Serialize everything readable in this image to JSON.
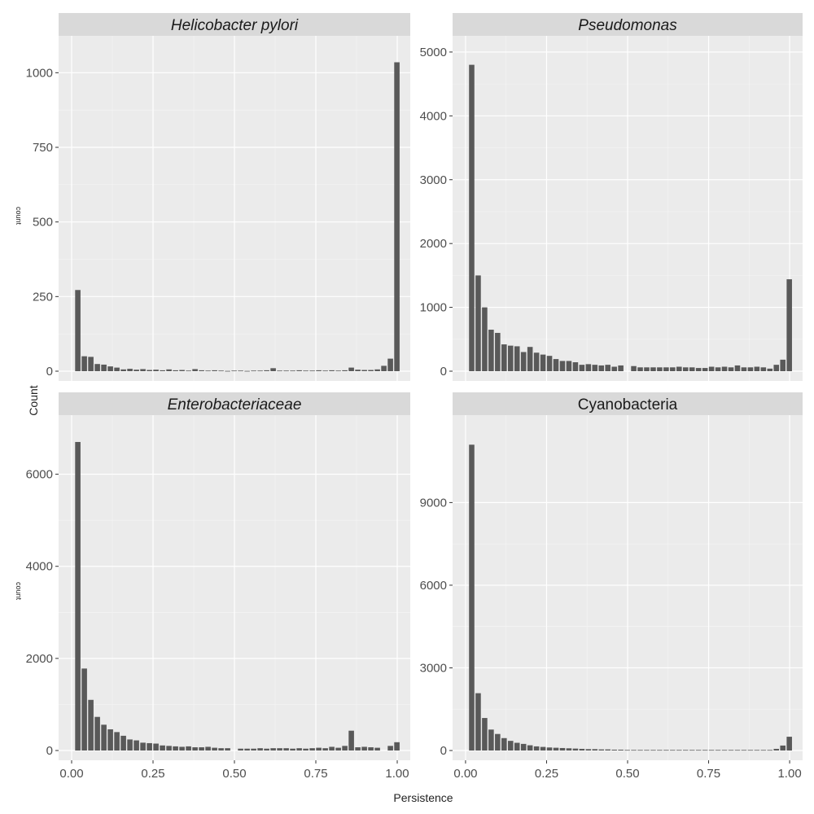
{
  "figure": {
    "y_label_main": "Count",
    "y_label_small": "count",
    "x_label": "Persistence"
  },
  "chart_data": [
    {
      "type": "bar",
      "title": "Helicobacter pylori",
      "title_style": "italic",
      "xlabel": "Persistence",
      "ylabel": "count",
      "xlim": [
        -0.04,
        1.04
      ],
      "ylim": [
        0,
        1080
      ],
      "xticks": [
        0.0,
        0.25,
        0.5,
        0.75,
        1.0
      ],
      "xtick_labels": [
        "0.00",
        "0.25",
        "0.50",
        "0.75",
        "1.00"
      ],
      "yticks": [
        0,
        250,
        500,
        750,
        1000
      ],
      "ytick_labels": [
        "0",
        "250",
        "500",
        "750",
        "1000"
      ],
      "bin_width": 0.0185,
      "x": [
        0.02,
        0.04,
        0.06,
        0.08,
        0.1,
        0.12,
        0.14,
        0.16,
        0.18,
        0.2,
        0.22,
        0.24,
        0.26,
        0.28,
        0.3,
        0.32,
        0.34,
        0.36,
        0.38,
        0.4,
        0.42,
        0.44,
        0.46,
        0.48,
        0.5,
        0.52,
        0.54,
        0.56,
        0.58,
        0.6,
        0.62,
        0.64,
        0.66,
        0.68,
        0.7,
        0.72,
        0.74,
        0.76,
        0.78,
        0.8,
        0.82,
        0.84,
        0.86,
        0.88,
        0.9,
        0.92,
        0.94,
        0.96,
        0.98,
        1.0
      ],
      "values": [
        272,
        50,
        48,
        24,
        22,
        16,
        12,
        6,
        8,
        5,
        7,
        4,
        5,
        3,
        6,
        3,
        4,
        2,
        7,
        3,
        2,
        3,
        2,
        1,
        2,
        2,
        1,
        2,
        2,
        3,
        10,
        2,
        2,
        2,
        3,
        2,
        2,
        3,
        2,
        3,
        2,
        3,
        12,
        5,
        4,
        4,
        6,
        18,
        42,
        1035
      ]
    },
    {
      "type": "bar",
      "title": "Pseudomonas",
      "title_style": "italic",
      "xlabel": "Persistence",
      "ylabel": "count",
      "xlim": [
        -0.04,
        1.04
      ],
      "ylim": [
        0,
        5050
      ],
      "xticks": [
        0.0,
        0.25,
        0.5,
        0.75,
        1.0
      ],
      "xtick_labels": [
        "0.00",
        "0.25",
        "0.50",
        "0.75",
        "1.00"
      ],
      "yticks": [
        0,
        1000,
        2000,
        3000,
        4000,
        5000
      ],
      "ytick_labels": [
        "0",
        "1000",
        "2000",
        "3000",
        "4000",
        "5000"
      ],
      "bin_width": 0.0185,
      "x": [
        0.02,
        0.04,
        0.06,
        0.08,
        0.1,
        0.12,
        0.14,
        0.16,
        0.18,
        0.2,
        0.22,
        0.24,
        0.26,
        0.28,
        0.3,
        0.32,
        0.34,
        0.36,
        0.38,
        0.4,
        0.42,
        0.44,
        0.46,
        0.48,
        0.5,
        0.52,
        0.54,
        0.56,
        0.58,
        0.6,
        0.62,
        0.64,
        0.66,
        0.68,
        0.7,
        0.72,
        0.74,
        0.76,
        0.78,
        0.8,
        0.82,
        0.84,
        0.86,
        0.88,
        0.9,
        0.92,
        0.94,
        0.96,
        0.98,
        1.0
      ],
      "values": [
        4800,
        1500,
        1000,
        650,
        600,
        420,
        400,
        390,
        300,
        380,
        290,
        260,
        240,
        190,
        160,
        160,
        140,
        100,
        110,
        100,
        90,
        100,
        70,
        90,
        0,
        80,
        60,
        60,
        60,
        60,
        60,
        60,
        70,
        60,
        60,
        50,
        50,
        70,
        60,
        70,
        60,
        90,
        60,
        60,
        70,
        60,
        40,
        100,
        180,
        1440
      ]
    },
    {
      "type": "bar",
      "title": "Enterobacteriaceae",
      "title_style": "italic",
      "xlabel": "Persistence",
      "ylabel": "count",
      "xlim": [
        -0.04,
        1.04
      ],
      "ylim": [
        0,
        7000
      ],
      "xticks": [
        0.0,
        0.25,
        0.5,
        0.75,
        1.0
      ],
      "xtick_labels": [
        "0.00",
        "0.25",
        "0.50",
        "0.75",
        "1.00"
      ],
      "yticks": [
        0,
        2000,
        4000,
        6000
      ],
      "ytick_labels": [
        "0",
        "2000",
        "4000",
        "6000"
      ],
      "bin_width": 0.0185,
      "x": [
        0.02,
        0.04,
        0.06,
        0.08,
        0.1,
        0.12,
        0.14,
        0.16,
        0.18,
        0.2,
        0.22,
        0.24,
        0.26,
        0.28,
        0.3,
        0.32,
        0.34,
        0.36,
        0.38,
        0.4,
        0.42,
        0.44,
        0.46,
        0.48,
        0.5,
        0.52,
        0.54,
        0.56,
        0.58,
        0.6,
        0.62,
        0.64,
        0.66,
        0.68,
        0.7,
        0.72,
        0.74,
        0.76,
        0.78,
        0.8,
        0.82,
        0.84,
        0.86,
        0.88,
        0.9,
        0.92,
        0.94,
        0.96,
        0.98,
        1.0
      ],
      "values": [
        6700,
        1780,
        1100,
        730,
        560,
        460,
        400,
        320,
        240,
        220,
        170,
        160,
        150,
        110,
        100,
        90,
        80,
        90,
        70,
        70,
        80,
        60,
        50,
        50,
        0,
        40,
        40,
        40,
        50,
        40,
        50,
        50,
        50,
        40,
        50,
        40,
        50,
        60,
        50,
        80,
        60,
        100,
        430,
        70,
        80,
        70,
        60,
        0,
        100,
        180
      ]
    },
    {
      "type": "bar",
      "title": "Cyanobacteria",
      "title_style": "normal",
      "xlabel": "Persistence",
      "ylabel": "count",
      "xlim": [
        -0.04,
        1.04
      ],
      "ylim": [
        0,
        11700
      ],
      "xticks": [
        0.0,
        0.25,
        0.5,
        0.75,
        1.0
      ],
      "xtick_labels": [
        "0.00",
        "0.25",
        "0.50",
        "0.75",
        "1.00"
      ],
      "yticks": [
        0,
        3000,
        6000,
        9000
      ],
      "ytick_labels": [
        "0",
        "3000",
        "6000",
        "9000"
      ],
      "bin_width": 0.0185,
      "x": [
        0.02,
        0.04,
        0.06,
        0.08,
        0.1,
        0.12,
        0.14,
        0.16,
        0.18,
        0.2,
        0.22,
        0.24,
        0.26,
        0.28,
        0.3,
        0.32,
        0.34,
        0.36,
        0.38,
        0.4,
        0.42,
        0.44,
        0.46,
        0.48,
        0.5,
        0.52,
        0.54,
        0.56,
        0.58,
        0.6,
        0.62,
        0.64,
        0.66,
        0.68,
        0.7,
        0.72,
        0.74,
        0.76,
        0.78,
        0.8,
        0.82,
        0.84,
        0.86,
        0.88,
        0.9,
        0.92,
        0.94,
        0.96,
        0.98,
        1.0
      ],
      "values": [
        11100,
        2080,
        1180,
        760,
        600,
        450,
        350,
        280,
        240,
        190,
        150,
        130,
        110,
        100,
        90,
        80,
        70,
        60,
        50,
        50,
        40,
        40,
        30,
        30,
        20,
        20,
        20,
        20,
        20,
        20,
        20,
        20,
        20,
        20,
        20,
        20,
        20,
        20,
        20,
        20,
        20,
        20,
        20,
        20,
        20,
        20,
        20,
        60,
        180,
        500
      ]
    }
  ]
}
